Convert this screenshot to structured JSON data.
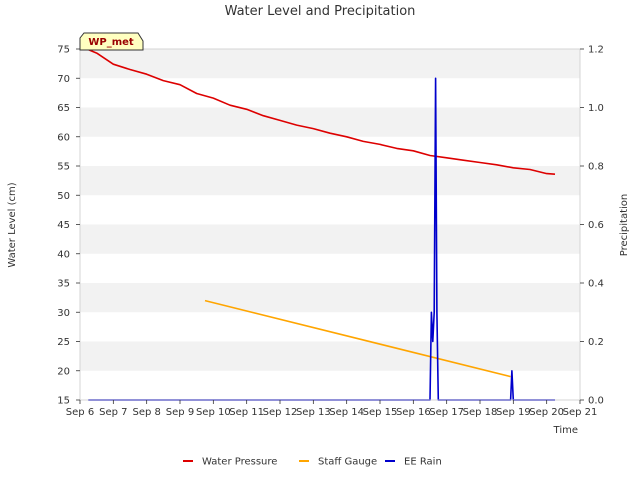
{
  "chart_data": {
    "type": "line",
    "title": "Water Level and Precipitation",
    "site_label": "WP_met",
    "xlabel": "Time",
    "ylabel": "Water Level (cm)",
    "y2label": "Precipitation",
    "x_ticks": [
      "Sep 6",
      "Sep 7",
      "Sep 8",
      "Sep 9",
      "Sep 10",
      "Sep 11",
      "Sep 12",
      "Sep 13",
      "Sep 14",
      "Sep 15",
      "Sep 16",
      "Sep 17",
      "Sep 18",
      "Sep 19",
      "Sep 20",
      "Sep 21"
    ],
    "xlim": [
      "Sep 6",
      "Sep 21"
    ],
    "ylim": [
      15,
      75
    ],
    "y_ticks": [
      15,
      20,
      25,
      30,
      35,
      40,
      45,
      50,
      55,
      60,
      65,
      70,
      75
    ],
    "y2lim": [
      0,
      1.2
    ],
    "y2_ticks": [
      "0.0",
      "0.2",
      "0.4",
      "0.6",
      "0.8",
      "1.0",
      "1.2"
    ],
    "background_bands": true,
    "legend_position": "bottom-center",
    "series": [
      {
        "name": "Water Pressure",
        "axis": "left",
        "color": "#dd0000",
        "x": [
          "Sep 6 06:00",
          "Sep 6 12:00",
          "Sep 7 00:00",
          "Sep 7 12:00",
          "Sep 8 00:00",
          "Sep 8 12:00",
          "Sep 9 00:00",
          "Sep 9 12:00",
          "Sep 10 00:00",
          "Sep 10 12:00",
          "Sep 11 00:00",
          "Sep 11 12:00",
          "Sep 12 00:00",
          "Sep 12 12:00",
          "Sep 13 00:00",
          "Sep 13 12:00",
          "Sep 14 00:00",
          "Sep 14 12:00",
          "Sep 15 00:00",
          "Sep 15 12:00",
          "Sep 16 00:00",
          "Sep 16 12:00",
          "Sep 17 00:00",
          "Sep 17 12:00",
          "Sep 18 00:00",
          "Sep 18 12:00",
          "Sep 19 00:00",
          "Sep 19 12:00",
          "Sep 20 00:00",
          "Sep 20 06:00"
        ],
        "y": [
          74.9,
          74.3,
          72.4,
          71.5,
          70.7,
          69.6,
          68.9,
          67.4,
          66.6,
          65.4,
          64.7,
          63.6,
          62.8,
          62.0,
          61.4,
          60.6,
          60.0,
          59.2,
          58.7,
          58.0,
          57.6,
          56.8,
          56.4,
          56.0,
          55.6,
          55.2,
          54.7,
          54.4,
          53.7,
          53.6
        ]
      },
      {
        "name": "Staff Gauge",
        "axis": "left",
        "color": "#ffa500",
        "x": [
          "Sep 9 18:00",
          "Sep 18 22:00"
        ],
        "y": [
          32.0,
          19.0
        ]
      },
      {
        "name": "EE Rain",
        "axis": "right",
        "color": "#0000cc",
        "x": [
          "Sep 6 06:00",
          "Sep 16 12:00",
          "Sep 16 13:00",
          "Sep 16 14:00",
          "Sep 16 15:00",
          "Sep 16 16:00",
          "Sep 16 17:00",
          "Sep 16 18:00",
          "Sep 16 19:00",
          "Sep 16 20:00",
          "Sep 18 22:00",
          "Sep 18 23:00",
          "Sep 19 00:00",
          "Sep 20 06:00"
        ],
        "y": [
          0.0,
          0.0,
          0.3,
          0.2,
          0.3,
          1.1,
          0.3,
          0.0,
          0.0,
          0.0,
          0.0,
          0.1,
          0.0,
          0.0
        ]
      }
    ]
  }
}
